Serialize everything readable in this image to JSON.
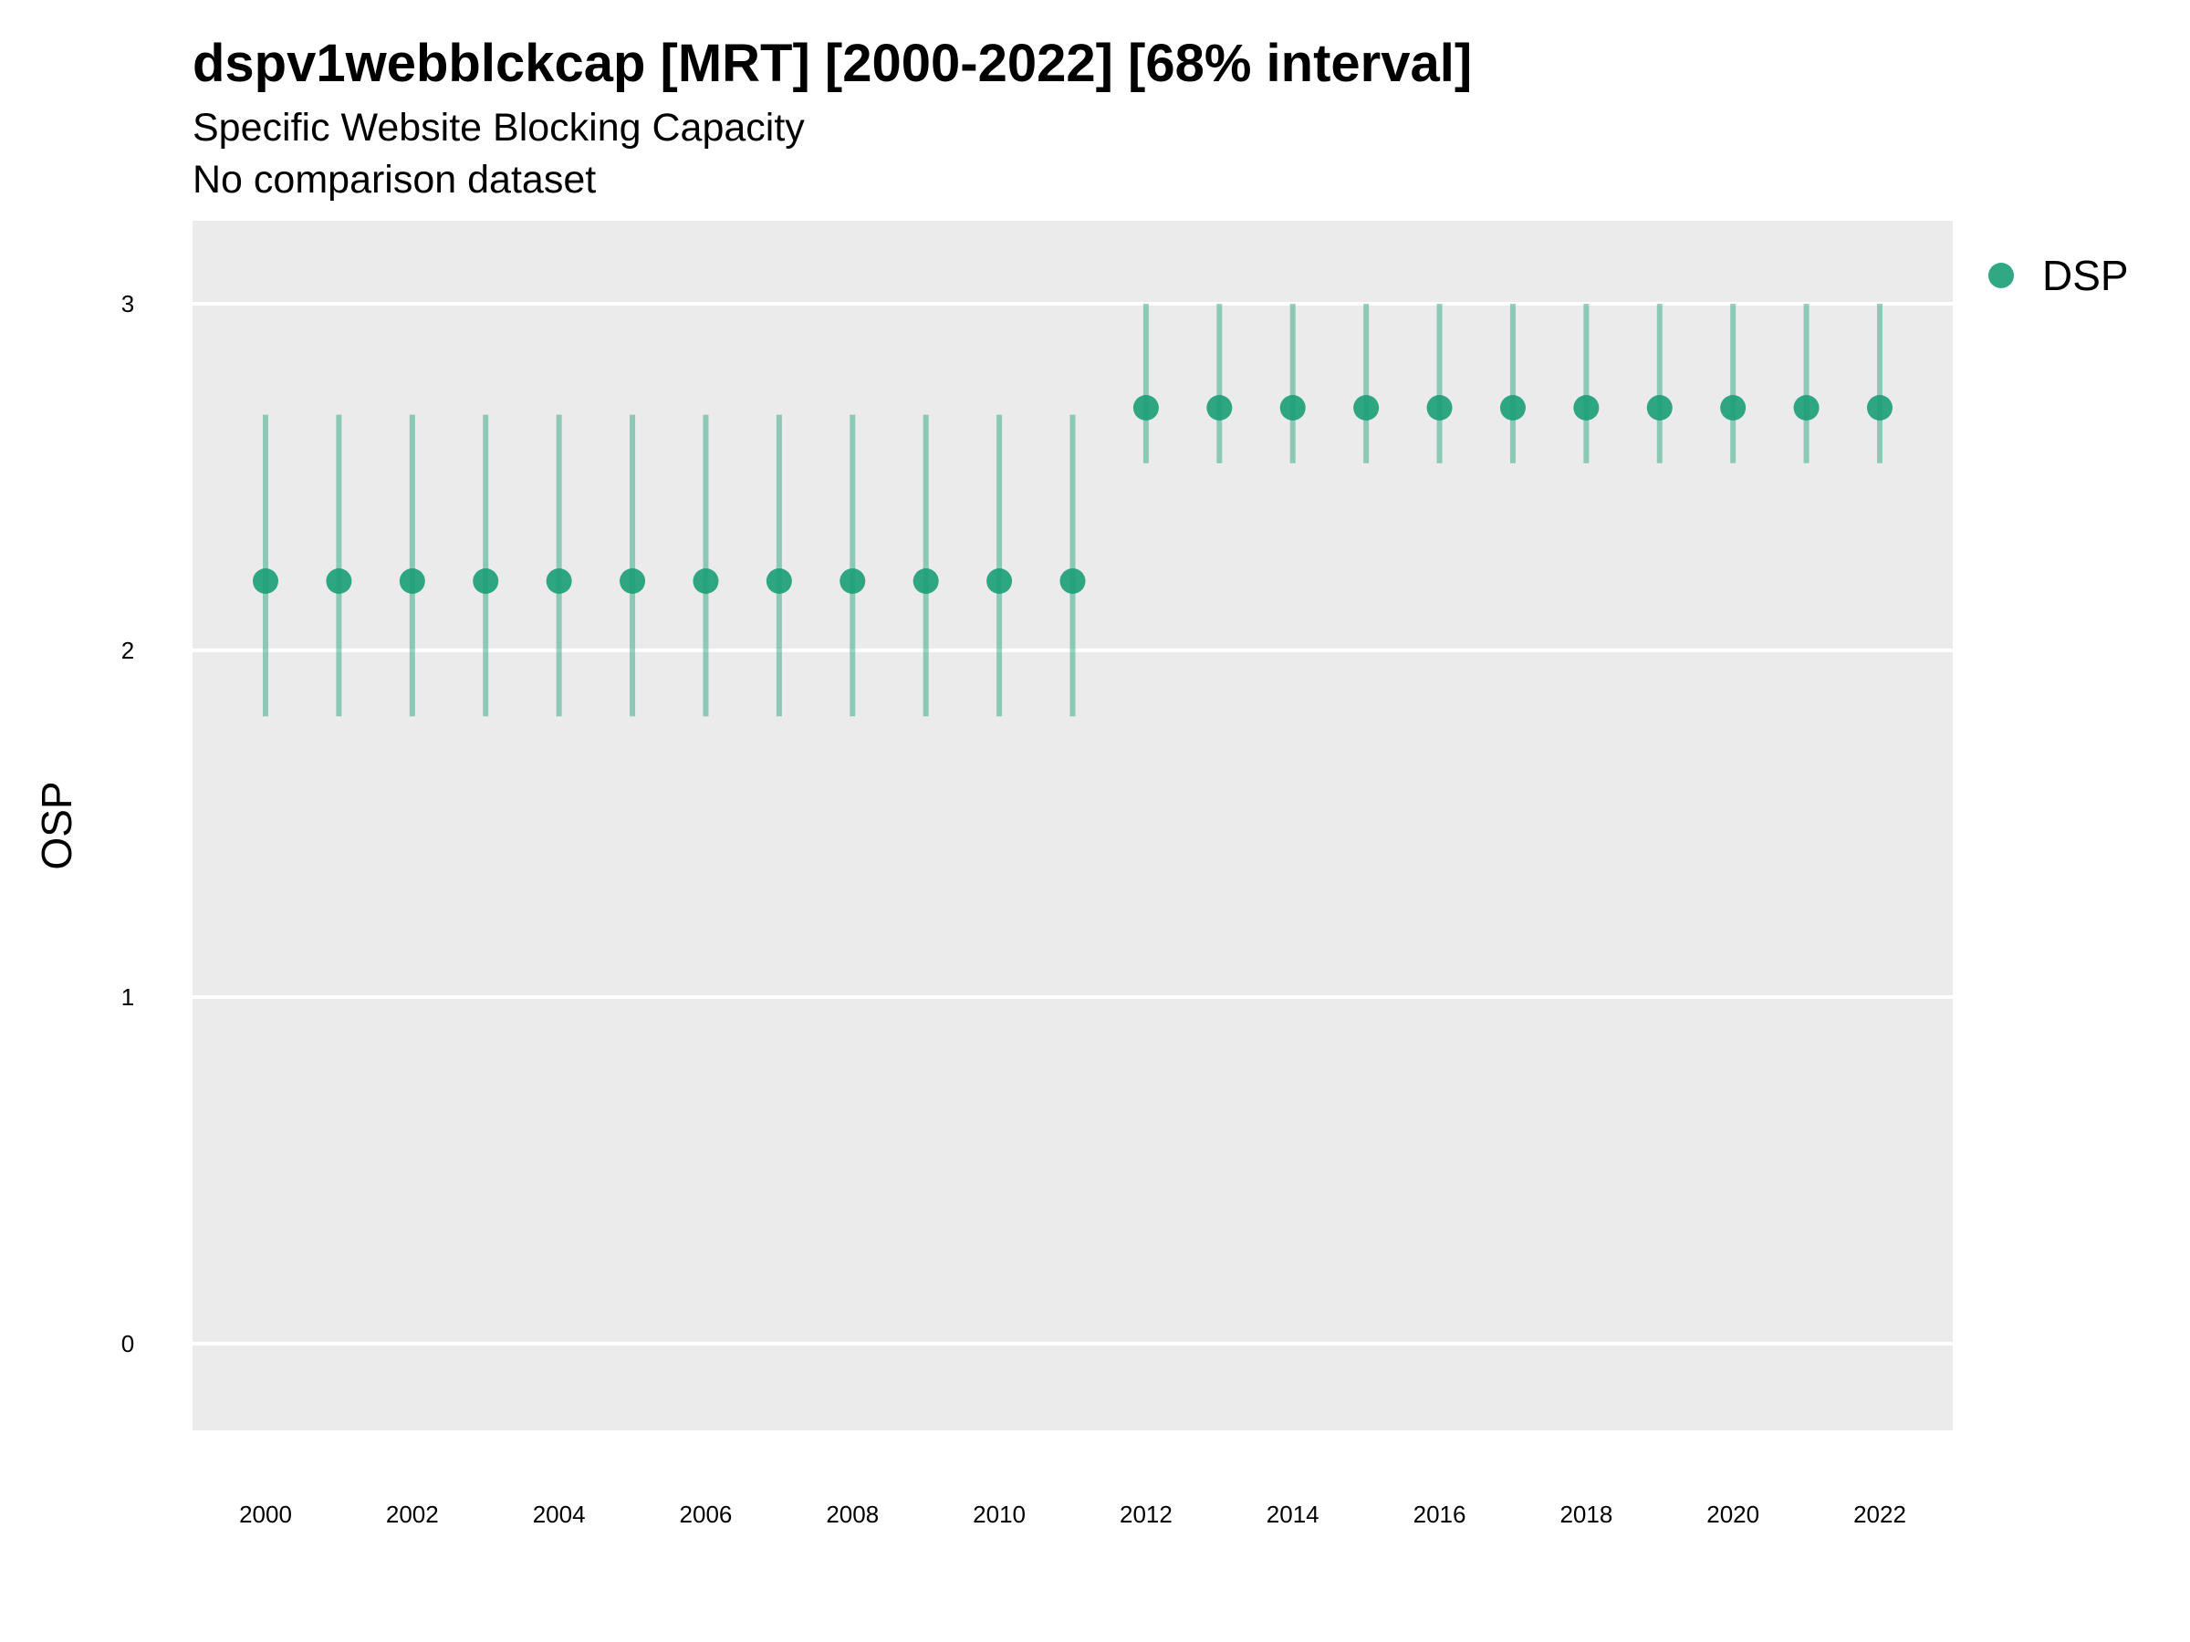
{
  "chart_data": {
    "type": "scatter",
    "title": "dspv1webblckcap [MRT] [2000-2022] [68% interval]",
    "subtitle": "Specific Website Blocking Capacity",
    "caption": "No comparison dataset",
    "xlabel": "",
    "ylabel": "OSP",
    "xlim": [
      1999,
      2023
    ],
    "ylim": [
      -0.25,
      3.25
    ],
    "x_ticks": [
      2000,
      2002,
      2004,
      2006,
      2008,
      2010,
      2012,
      2014,
      2016,
      2018,
      2020,
      2022
    ],
    "y_ticks": [
      0,
      1,
      2,
      3
    ],
    "grid": true,
    "legend_position": "right",
    "series": [
      {
        "name": "DSP",
        "color": "#1b9e77",
        "x": [
          2000,
          2001,
          2002,
          2003,
          2004,
          2005,
          2006,
          2007,
          2008,
          2009,
          2010,
          2011,
          2012,
          2013,
          2014,
          2015,
          2016,
          2017,
          2018,
          2019,
          2020,
          2021,
          2022
        ],
        "y": [
          2.2,
          2.2,
          2.2,
          2.2,
          2.2,
          2.2,
          2.2,
          2.2,
          2.2,
          2.2,
          2.2,
          2.2,
          2.7,
          2.7,
          2.7,
          2.7,
          2.7,
          2.7,
          2.7,
          2.7,
          2.7,
          2.7,
          2.7
        ],
        "low": [
          1.81,
          1.81,
          1.81,
          1.81,
          1.81,
          1.81,
          1.81,
          1.81,
          1.81,
          1.81,
          1.81,
          1.81,
          2.54,
          2.54,
          2.54,
          2.54,
          2.54,
          2.54,
          2.54,
          2.54,
          2.54,
          2.54,
          2.54
        ],
        "high": [
          2.68,
          2.68,
          2.68,
          2.68,
          2.68,
          2.68,
          2.68,
          2.68,
          2.68,
          2.68,
          2.68,
          2.68,
          3.0,
          3.0,
          3.0,
          3.0,
          3.0,
          3.0,
          3.0,
          3.0,
          3.0,
          3.0,
          3.0
        ]
      }
    ]
  }
}
